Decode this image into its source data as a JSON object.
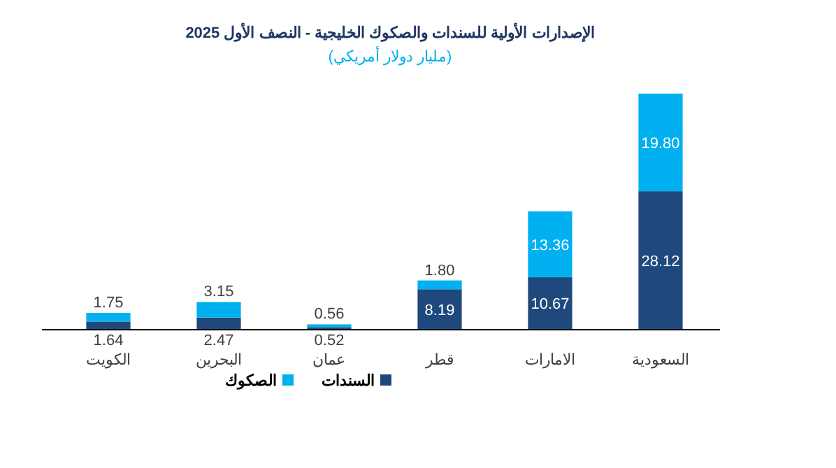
{
  "chart_data": {
    "type": "bar",
    "title": "الإصدارات الأولية للسندات والصكوك الخليجية - النصف الأول 2025",
    "subtitle": "(مليار دولار أمريكي)",
    "categories": [
      "الكويت",
      "البحرين",
      "عمان",
      "قطر",
      "الامارات",
      "السعودية"
    ],
    "stacked": true,
    "legend": "bottom",
    "series": [
      {
        "name": "السندات",
        "color": "#1f497d",
        "values": [
          1.64,
          2.47,
          0.52,
          8.19,
          10.67,
          28.12
        ],
        "value_labels": [
          "1.64",
          "2.47",
          "0.52",
          "8.19",
          "10.67",
          "28.12"
        ]
      },
      {
        "name": "الصكوك",
        "color": "#00b0f0",
        "values": [
          1.75,
          3.15,
          0.56,
          1.8,
          13.36,
          19.8
        ],
        "value_labels": [
          "1.75",
          "3.15",
          "0.56",
          "1.80",
          "13.36",
          "19.80"
        ]
      }
    ]
  }
}
